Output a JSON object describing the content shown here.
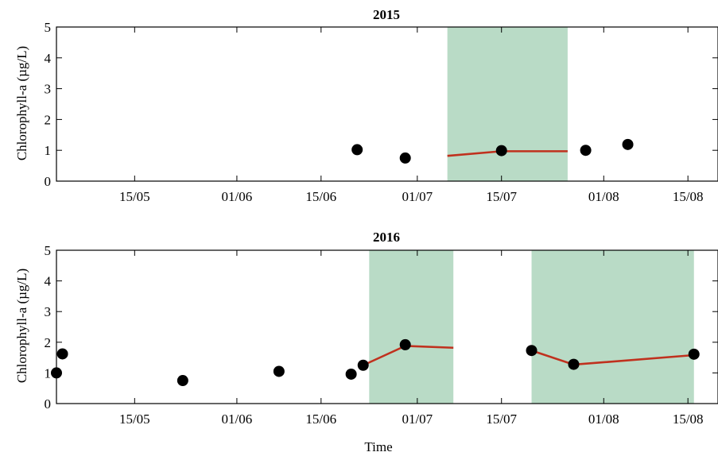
{
  "chart_data": {
    "type": "scatter",
    "xlabel": "Time",
    "ylabel": "Chlorophyll-a (µg/L)",
    "colors": {
      "points": "#000000",
      "line": "#c0311e",
      "shade": "#b9dbc6"
    },
    "panels": [
      {
        "title": "2015",
        "xlim": [
          "2015-05-02",
          "2015-08-20"
        ],
        "ylim": [
          0,
          5
        ],
        "yticks": [
          0,
          1,
          2,
          3,
          4,
          5
        ],
        "xticks": [
          "2015-05-15",
          "2015-06-01",
          "2015-06-15",
          "2015-07-01",
          "2015-07-15",
          "2015-08-01",
          "2015-08-15"
        ],
        "xtick_labels": [
          "15/05",
          "01/06",
          "15/06",
          "01/07",
          "15/07",
          "01/08",
          "15/08"
        ],
        "shaded_periods": [
          [
            "2015-07-06",
            "2015-07-26"
          ]
        ],
        "points": [
          {
            "x": "2015-06-21",
            "y": 1.02
          },
          {
            "x": "2015-06-29",
            "y": 0.75
          },
          {
            "x": "2015-07-15",
            "y": 0.99
          },
          {
            "x": "2015-07-29",
            "y": 1.0
          },
          {
            "x": "2015-08-05",
            "y": 1.19
          }
        ],
        "lines": [
          [
            {
              "x": "2015-07-06",
              "y": 0.82
            },
            {
              "x": "2015-07-15",
              "y": 0.97
            },
            {
              "x": "2015-07-26",
              "y": 0.97
            }
          ]
        ]
      },
      {
        "title": "2016",
        "xlim": [
          "2016-05-02",
          "2016-08-20"
        ],
        "ylim": [
          0,
          5
        ],
        "yticks": [
          0,
          1,
          2,
          3,
          4,
          5
        ],
        "xticks": [
          "2016-05-15",
          "2016-06-01",
          "2016-06-15",
          "2016-07-01",
          "2016-07-15",
          "2016-08-01",
          "2016-08-15"
        ],
        "xtick_labels": [
          "15/05",
          "01/06",
          "15/06",
          "01/07",
          "15/07",
          "01/08",
          "15/08"
        ],
        "shaded_periods": [
          [
            "2016-06-23",
            "2016-07-07"
          ],
          [
            "2016-07-20",
            "2016-08-16"
          ]
        ],
        "points": [
          {
            "x": "2016-05-02",
            "y": 1.0
          },
          {
            "x": "2016-05-03",
            "y": 1.62
          },
          {
            "x": "2016-05-23",
            "y": 0.75
          },
          {
            "x": "2016-06-08",
            "y": 1.05
          },
          {
            "x": "2016-06-20",
            "y": 0.96
          },
          {
            "x": "2016-06-22",
            "y": 1.25
          },
          {
            "x": "2016-06-29",
            "y": 1.92
          },
          {
            "x": "2016-07-20",
            "y": 1.73
          },
          {
            "x": "2016-07-27",
            "y": 1.28
          },
          {
            "x": "2016-08-16",
            "y": 1.61
          }
        ],
        "lines": [
          [
            {
              "x": "2016-06-22",
              "y": 1.25
            },
            {
              "x": "2016-06-29",
              "y": 1.88
            },
            {
              "x": "2016-07-07",
              "y": 1.82
            }
          ],
          [
            {
              "x": "2016-07-20",
              "y": 1.73
            },
            {
              "x": "2016-07-27",
              "y": 1.27
            },
            {
              "x": "2016-08-16",
              "y": 1.58
            }
          ]
        ]
      }
    ]
  }
}
